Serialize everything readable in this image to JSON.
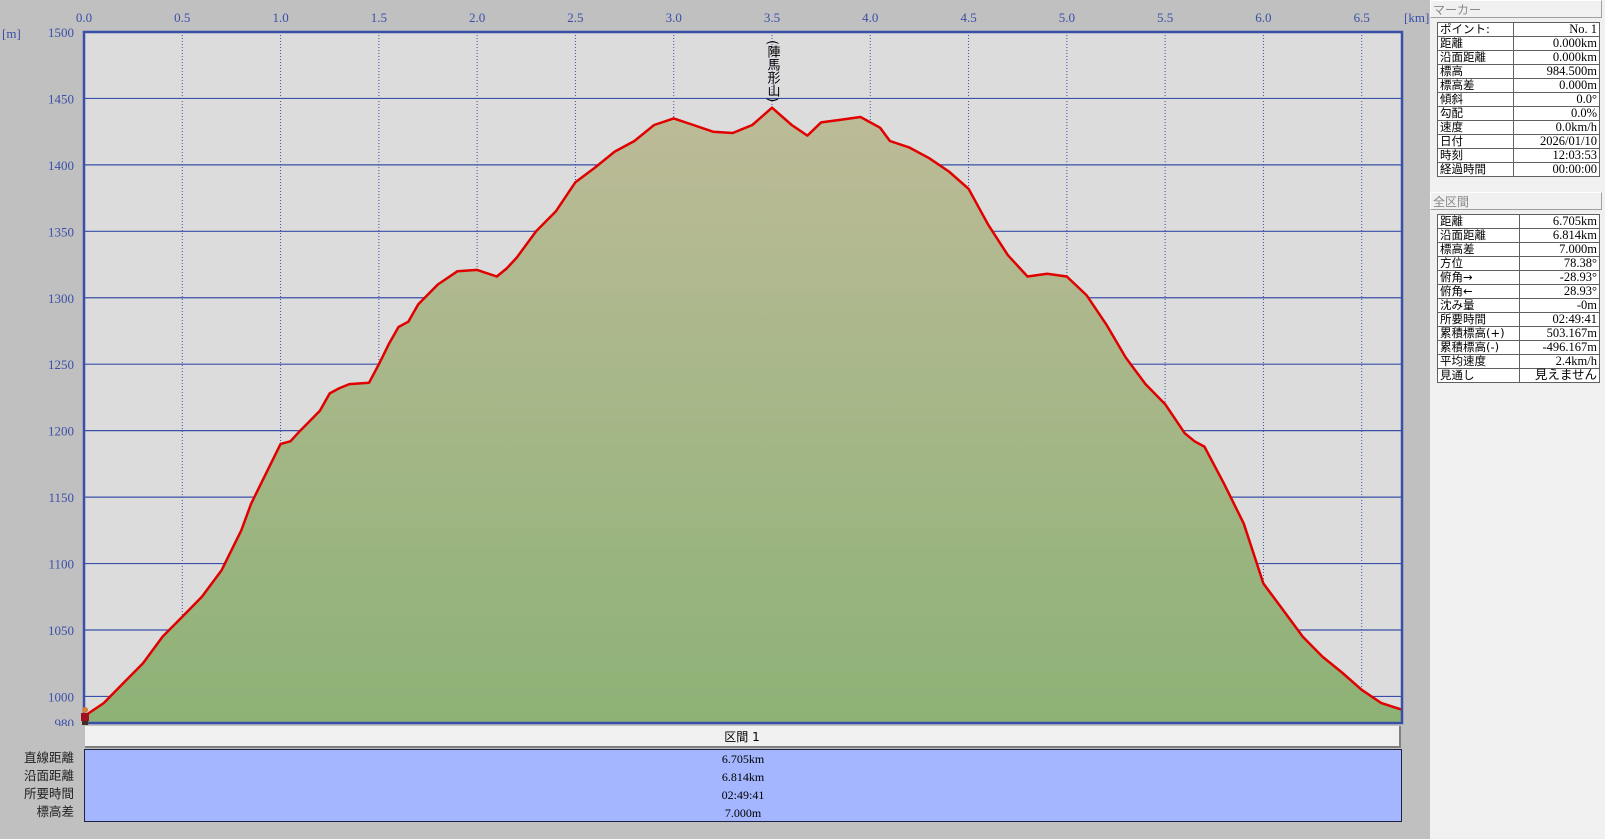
{
  "chart_data": {
    "type": "area",
    "xunit": "[km]",
    "yunit": "[m]",
    "xlim": [
      0,
      6.705
    ],
    "ylim": [
      980,
      1500
    ],
    "xticks": [
      0.0,
      0.5,
      1.0,
      1.5,
      2.0,
      2.5,
      3.0,
      3.5,
      4.0,
      4.5,
      5.0,
      5.5,
      6.0,
      6.5
    ],
    "yticks": [
      980,
      1000,
      1050,
      1100,
      1150,
      1200,
      1250,
      1300,
      1350,
      1400,
      1450,
      1500
    ],
    "grid": true,
    "annotations": [
      {
        "text": "(陣馬形山)",
        "x": 3.5
      }
    ],
    "series": [
      {
        "x": [
          0,
          0.1,
          0.2,
          0.3,
          0.4,
          0.5,
          0.6,
          0.7,
          0.8,
          0.85,
          0.9,
          0.95,
          1.0,
          1.05,
          1.1,
          1.2,
          1.25,
          1.3,
          1.35,
          1.45,
          1.5,
          1.55,
          1.6,
          1.65,
          1.7,
          1.8,
          1.9,
          2.0,
          2.1,
          2.15,
          2.2,
          2.3,
          2.4,
          2.5,
          2.6,
          2.7,
          2.8,
          2.9,
          3.0,
          3.1,
          3.2,
          3.3,
          3.4,
          3.5,
          3.6,
          3.68,
          3.75,
          3.85,
          3.95,
          4.05,
          4.1,
          4.2,
          4.3,
          4.4,
          4.5,
          4.6,
          4.7,
          4.8,
          4.9,
          5.0,
          5.1,
          5.2,
          5.3,
          5.4,
          5.5,
          5.6,
          5.65,
          5.7,
          5.8,
          5.9,
          6.0,
          6.1,
          6.2,
          6.3,
          6.4,
          6.5,
          6.6,
          6.705
        ],
        "y": [
          985,
          995,
          1010,
          1025,
          1045,
          1060,
          1075,
          1095,
          1125,
          1145,
          1160,
          1175,
          1190,
          1192,
          1200,
          1215,
          1228,
          1232,
          1235,
          1236,
          1250,
          1265,
          1278,
          1282,
          1295,
          1310,
          1320,
          1321,
          1316,
          1322,
          1330,
          1350,
          1365,
          1387,
          1398,
          1410,
          1418,
          1430,
          1435,
          1430,
          1425,
          1424,
          1430,
          1443,
          1430,
          1422,
          1432,
          1434,
          1436,
          1428,
          1418,
          1413,
          1405,
          1395,
          1382,
          1355,
          1332,
          1316,
          1318,
          1316,
          1302,
          1280,
          1255,
          1235,
          1220,
          1198,
          1192,
          1188,
          1160,
          1130,
          1085,
          1065,
          1045,
          1030,
          1018,
          1005,
          995,
          990
        ]
      }
    ],
    "colors": {
      "line": "#e00000",
      "fill_top": "#bdbb98",
      "fill_bottom": "#8db276",
      "plot_bg": "#dcdcdc",
      "axis": "#3a4fa8"
    }
  },
  "marker": {
    "header": "マーカー",
    "rows": [
      [
        "ポイント:",
        "No. 1"
      ],
      [
        "距離",
        "0.000km"
      ],
      [
        "沿面距離",
        "0.000km"
      ],
      [
        "標高",
        "984.500m"
      ],
      [
        "標高差",
        "0.000m"
      ],
      [
        "傾斜",
        "0.0°"
      ],
      [
        "勾配",
        "0.0%"
      ],
      [
        "速度",
        "0.0km/h"
      ],
      [
        "日付",
        "2026/01/10"
      ],
      [
        "時刻",
        "12:03:53"
      ],
      [
        "経過時間",
        "00:00:00"
      ]
    ]
  },
  "total": {
    "header": "全区間",
    "rows": [
      [
        "距離",
        "6.705km"
      ],
      [
        "沿面距離",
        "6.814km"
      ],
      [
        "標高差",
        "7.000m"
      ],
      [
        "方位",
        "78.38°"
      ],
      [
        "俯角→",
        "-28.93°"
      ],
      [
        "俯角←",
        "28.93°"
      ],
      [
        "沈み量",
        "-0m"
      ],
      [
        "所要時間",
        "02:49:41"
      ],
      [
        "累積標高(+)",
        "503.167m"
      ],
      [
        "累積標高(-)",
        "-496.167m"
      ],
      [
        "平均速度",
        "2.4km/h"
      ],
      [
        "見通し",
        "見えません"
      ]
    ]
  },
  "section": {
    "title": "区間 1",
    "labels": [
      "直線距離",
      "沿面距離",
      "所要時間",
      "標高差"
    ],
    "values": [
      "6.705km",
      "6.814km",
      "02:49:41",
      "7.000m"
    ]
  }
}
